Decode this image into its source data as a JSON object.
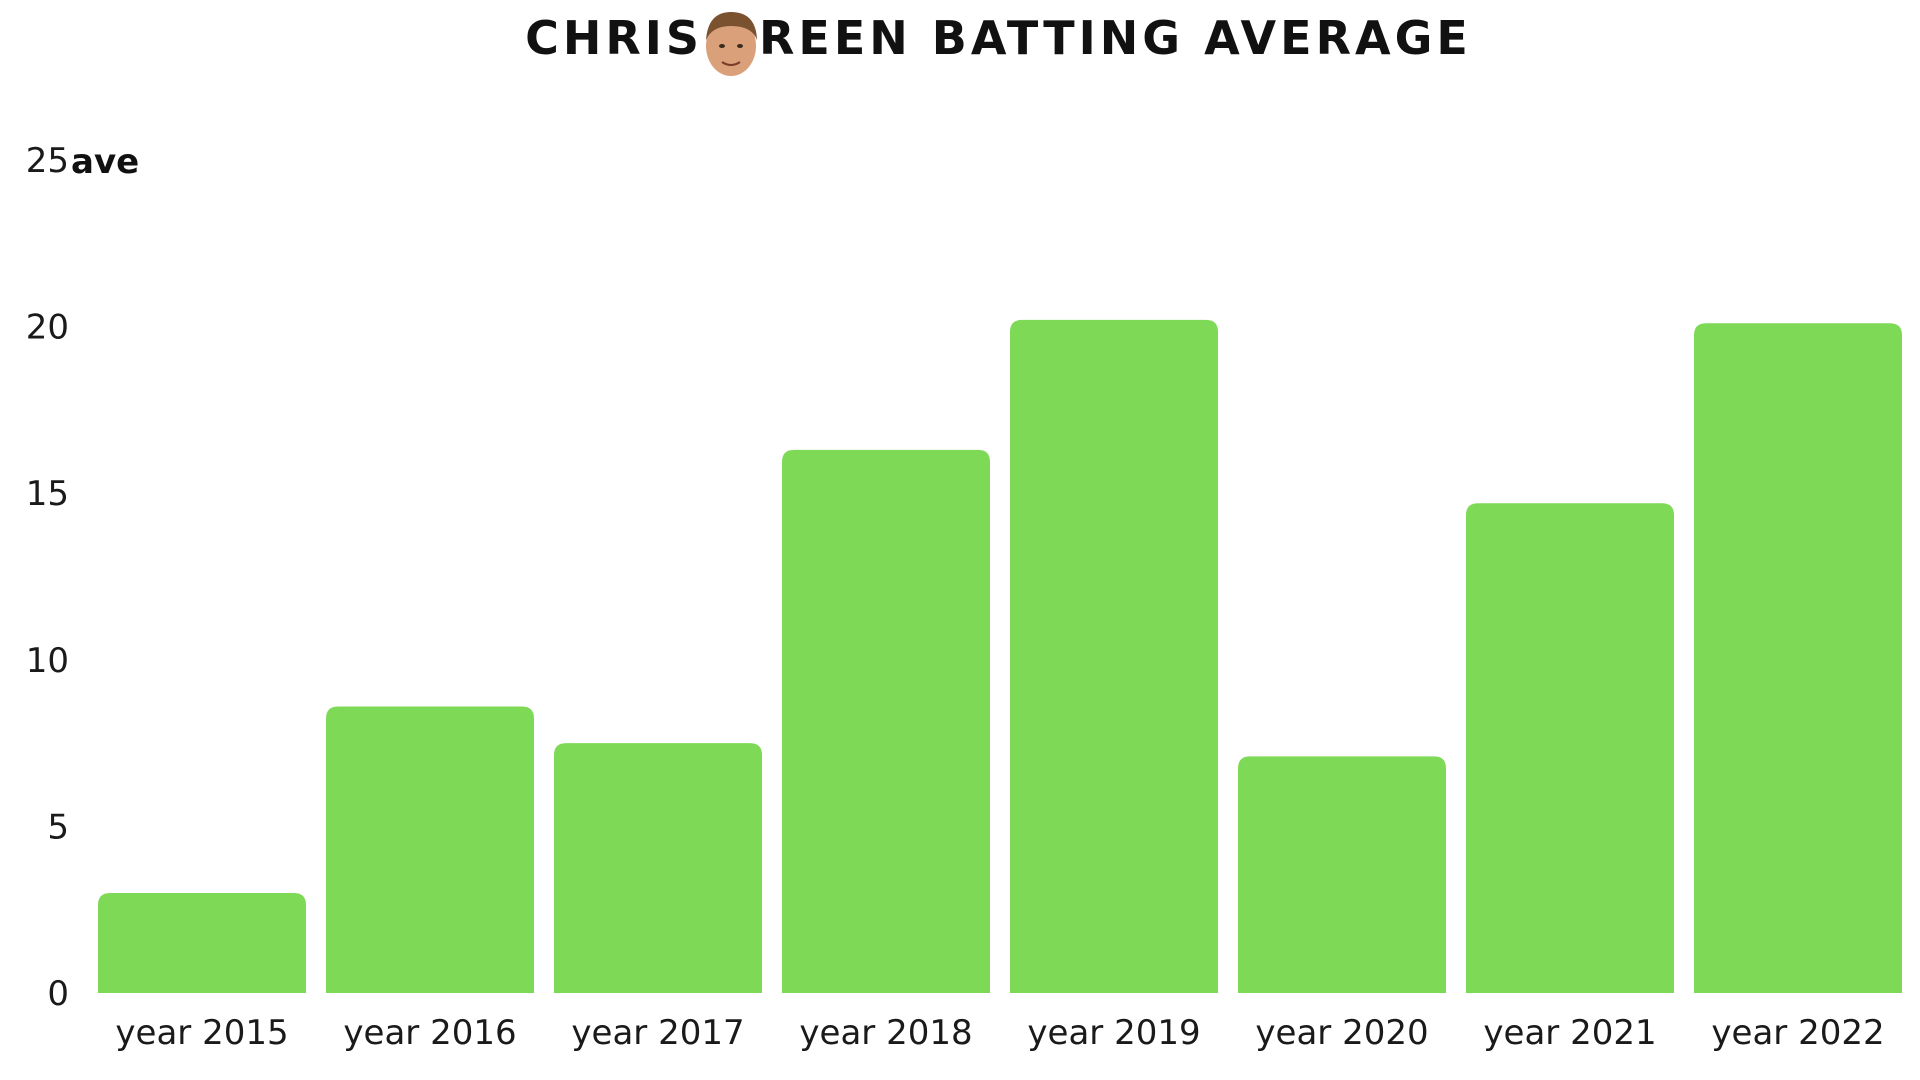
{
  "chart_data": {
    "type": "bar",
    "title": "CHRIS GREEN BATTING AVERAGE",
    "title_parts": [
      "CHRIS",
      "REEN BATTING AVERAGE"
    ],
    "title_icon": "face-icon",
    "ylabel": "ave",
    "xlabel": "",
    "categories": [
      "year 2015",
      "year 2016",
      "year 2017",
      "year 2018",
      "year 2019",
      "year 2020",
      "year 2021",
      "year 2022"
    ],
    "values": [
      3.0,
      8.6,
      7.5,
      16.3,
      20.2,
      7.1,
      14.7,
      20.1
    ],
    "ylim": [
      0,
      25
    ],
    "yticks": [
      "0",
      "5",
      "10",
      "15",
      "20",
      "25"
    ],
    "grid": false,
    "legend": "none",
    "bar_color": "#7ed957"
  }
}
